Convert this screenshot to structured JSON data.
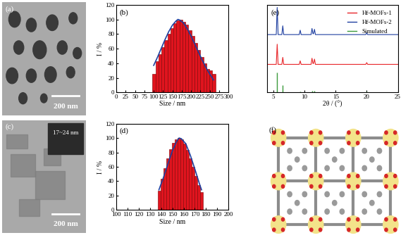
{
  "chart_data": [
    {
      "type": "histogram",
      "panel": "(b)",
      "xlabel": "Size / nm",
      "ylabel": "I / %",
      "bins": [
        97,
        105,
        113,
        121,
        129,
        137,
        145,
        153,
        161,
        169,
        177,
        185,
        193,
        201,
        209,
        217,
        225,
        233,
        241,
        249,
        257,
        265
      ],
      "values": [
        25,
        43,
        52,
        62,
        72,
        80,
        88,
        95,
        99,
        100,
        97,
        93,
        85,
        77,
        68,
        58,
        48,
        40,
        32,
        30,
        25
      ],
      "color": "#e0141e",
      "fit": {
        "x": [
          100,
          110,
          120,
          130,
          140,
          150,
          160,
          165,
          170,
          180,
          190,
          200,
          210,
          220,
          230,
          240,
          250,
          260
        ],
        "values": [
          37,
          48,
          60,
          72,
          83,
          92,
          98,
          100,
          99,
          95,
          87,
          77,
          66,
          55,
          44,
          34,
          25,
          17
        ],
        "color": "#1f3f9f"
      },
      "xlim": [
        0,
        300
      ],
      "xticks": [
        0,
        25,
        50,
        75,
        100,
        125,
        150,
        175,
        200,
        225,
        250,
        275,
        300
      ],
      "ylim": [
        0,
        120
      ],
      "yticks": [
        0,
        20,
        40,
        60,
        80,
        100,
        120
      ]
    },
    {
      "type": "histogram",
      "panel": "(d)",
      "xlabel": "Size / nm",
      "ylabel": "I / %",
      "bins": [
        137,
        139.5,
        142,
        144.5,
        147,
        149.5,
        152,
        154.5,
        157,
        159.5,
        162,
        164.5,
        167,
        169.5,
        172,
        174.5,
        177
      ],
      "values": [
        27,
        43,
        58,
        72,
        84,
        93,
        98,
        100,
        98,
        92,
        83,
        72,
        60,
        47,
        35,
        25
      ],
      "color": "#e0141e",
      "fit": {
        "x": [
          138,
          142,
          146,
          150,
          154,
          156,
          158,
          162,
          166,
          170,
          174,
          176
        ],
        "values": [
          28,
          45,
          64,
          82,
          96,
          100,
          99,
          92,
          76,
          57,
          37,
          28
        ],
        "color": "#1f3f9f"
      },
      "xlim": [
        100,
        200
      ],
      "xticks": [
        100,
        110,
        120,
        130,
        140,
        150,
        160,
        170,
        180,
        190,
        200
      ],
      "ylim": [
        0,
        120
      ],
      "yticks": [
        0,
        20,
        40,
        60,
        80,
        100,
        120
      ]
    },
    {
      "type": "line",
      "panel": "(e)",
      "xlabel": "2θ / (°)",
      "series": [
        {
          "name": "Hf-MOFs-1",
          "color": "#e8262a",
          "x": [
            4,
            5.45,
            5.6,
            5.75,
            6.35,
            6.5,
            6.65,
            9.15,
            9.3,
            9.45,
            11.05,
            11.2,
            11.35,
            11.45,
            11.6,
            11.75,
            19.85,
            20,
            20.15,
            25
          ],
          "values": [
            32,
            32,
            55,
            32,
            32,
            40,
            32,
            32,
            36,
            32,
            32,
            39,
            33,
            33,
            38,
            32,
            32,
            34,
            32,
            32
          ]
        },
        {
          "name": "Hf-MOFs-2",
          "color": "#1f3fa0",
          "x": [
            4,
            5.45,
            5.6,
            5.75,
            6.35,
            6.5,
            6.65,
            9.15,
            9.3,
            9.45,
            11.05,
            11.2,
            11.35,
            11.45,
            11.6,
            11.75,
            19.85,
            20,
            20.15,
            25
          ],
          "values": [
            66,
            66,
            97,
            66,
            66,
            76,
            66,
            66,
            71,
            66,
            66,
            73,
            67,
            67,
            72,
            66,
            66,
            68,
            66,
            66
          ]
        },
        {
          "name": "Simulated",
          "color": "#3c9a3c",
          "type": "stick",
          "x": [
            5.6,
            6.5,
            9.3,
            11.2,
            11.6,
            20
          ],
          "values": [
            23,
            8,
            1,
            2,
            2,
            1
          ]
        }
      ],
      "xlim": [
        4,
        25
      ],
      "xticks": [
        5,
        10,
        15,
        20,
        25
      ],
      "ylim": [
        0,
        100
      ],
      "yticks": [],
      "tick_labels": "x",
      "legend": "upper right"
    }
  ],
  "images": [
    {
      "panel": "(a)",
      "scale_bar": "200 nm"
    },
    {
      "panel": "(c)",
      "scale_bar": "200 nm",
      "inset": "17~24 nm"
    },
    {
      "panel": "(f)"
    }
  ]
}
